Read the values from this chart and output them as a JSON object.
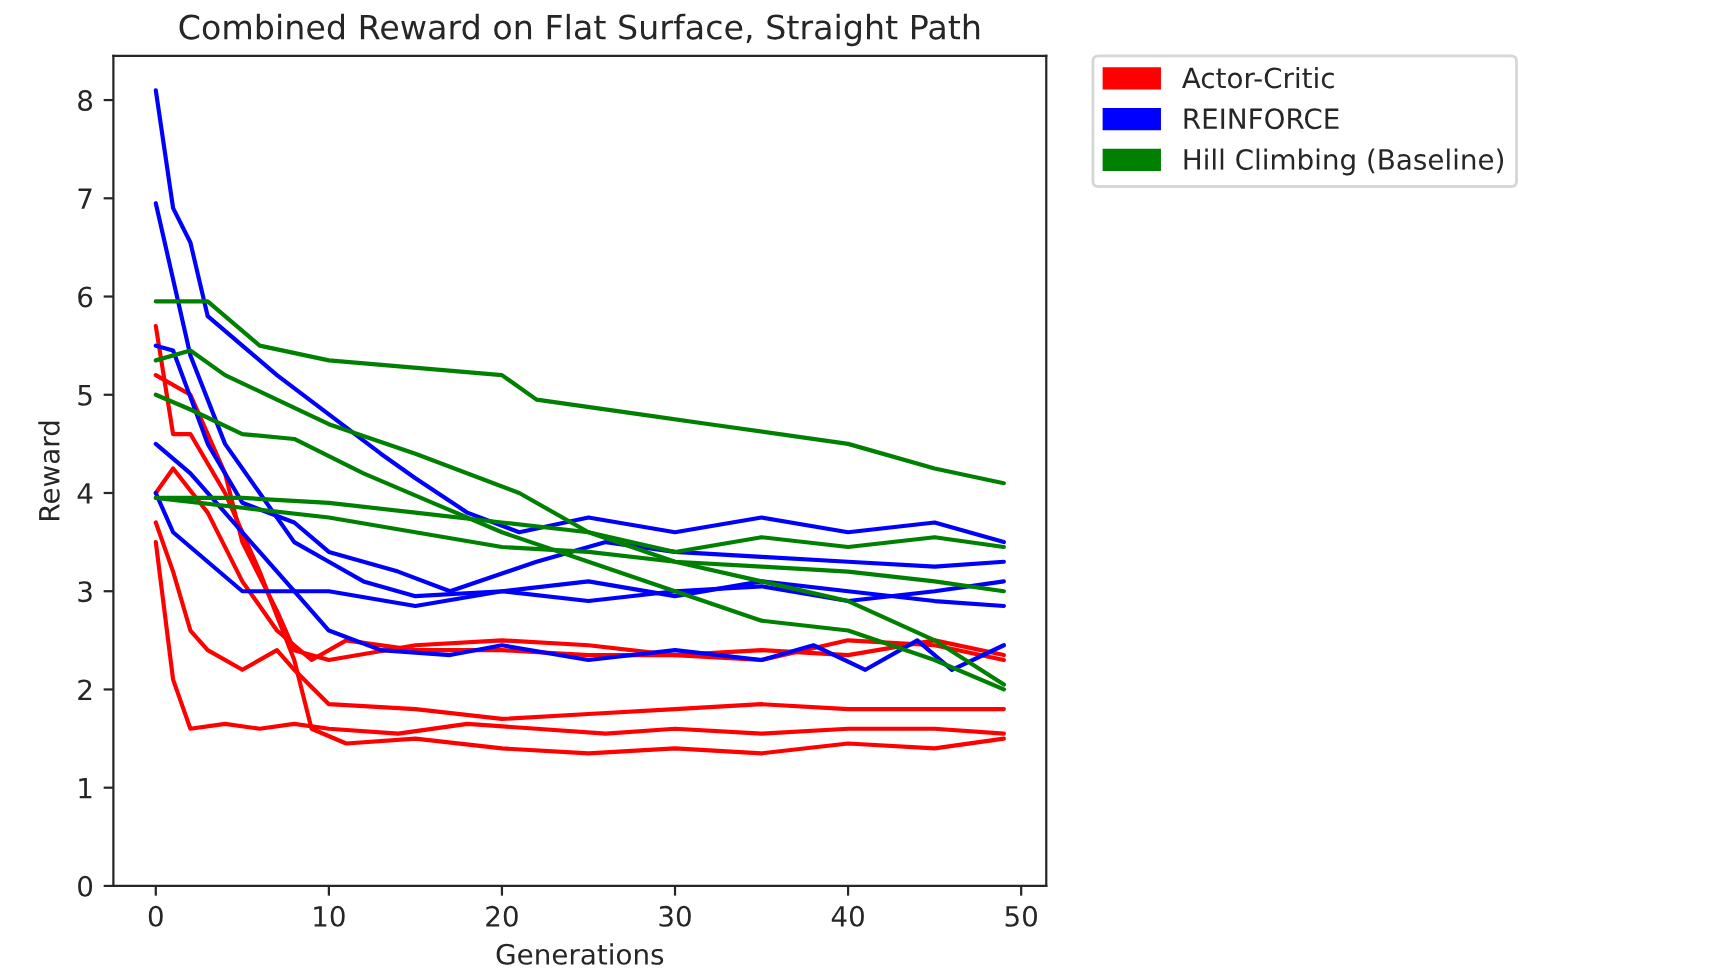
{
  "chart_data": {
    "type": "line",
    "title": "Combined Reward on Flat Surface, Straight Path",
    "xlabel": "Generations",
    "ylabel": "Reward",
    "xlim": [
      -2.45,
      51.45
    ],
    "ylim": [
      0,
      8.45
    ],
    "xticks": [
      0,
      10,
      20,
      30,
      40,
      50
    ],
    "yticks": [
      0,
      1,
      2,
      3,
      4,
      5,
      6,
      7,
      8
    ],
    "grid": false,
    "legend": "top right",
    "marker": "none",
    "line_style": "solid",
    "series": [
      {
        "name": "Actor-Critic",
        "color": "#ff0000",
        "x": [
          0,
          1,
          2,
          4,
          6,
          8,
          9,
          11,
          15,
          20,
          25,
          30,
          35,
          40,
          45,
          49
        ],
        "values": [
          5.7,
          4.6,
          4.6,
          4.0,
          3.2,
          2.3,
          1.6,
          1.45,
          1.5,
          1.4,
          1.35,
          1.4,
          1.35,
          1.45,
          1.4,
          1.5
        ]
      },
      {
        "color": "#ff0000",
        "x": [
          0,
          2,
          4,
          5,
          7,
          8,
          10,
          15,
          20,
          25,
          30,
          35,
          40,
          45,
          49
        ],
        "values": [
          5.2,
          5.0,
          4.2,
          3.5,
          2.8,
          2.4,
          2.3,
          2.45,
          2.5,
          2.45,
          2.35,
          2.4,
          2.35,
          2.5,
          2.35
        ]
      },
      {
        "color": "#ff0000",
        "x": [
          0,
          1,
          3,
          5,
          7,
          9,
          11,
          15,
          20,
          25,
          30,
          35,
          40,
          45,
          49
        ],
        "values": [
          4.0,
          4.25,
          3.8,
          3.1,
          2.6,
          2.3,
          2.5,
          2.4,
          2.4,
          2.35,
          2.35,
          2.3,
          2.5,
          2.45,
          2.3
        ]
      },
      {
        "color": "#ff0000",
        "x": [
          0,
          1,
          2,
          3,
          5,
          7,
          8,
          10,
          15,
          20,
          25,
          30,
          35,
          40,
          45,
          49
        ],
        "values": [
          3.7,
          3.2,
          2.6,
          2.4,
          2.2,
          2.4,
          2.2,
          1.85,
          1.8,
          1.7,
          1.75,
          1.8,
          1.85,
          1.8,
          1.8,
          1.8
        ]
      },
      {
        "color": "#ff0000",
        "x": [
          0,
          1,
          2,
          4,
          6,
          8,
          10,
          14,
          18,
          22,
          26,
          30,
          35,
          40,
          45,
          49
        ],
        "values": [
          3.5,
          2.1,
          1.6,
          1.65,
          1.6,
          1.65,
          1.6,
          1.55,
          1.65,
          1.6,
          1.55,
          1.6,
          1.55,
          1.6,
          1.6,
          1.55
        ]
      },
      {
        "name": "REINFORCE",
        "color": "#0000ff",
        "x": [
          0,
          1,
          2,
          3,
          5,
          7,
          10,
          13,
          15,
          18,
          21,
          25,
          30,
          35,
          40,
          45,
          49
        ],
        "values": [
          8.1,
          6.9,
          6.55,
          5.8,
          5.5,
          5.2,
          4.8,
          4.4,
          4.15,
          3.8,
          3.6,
          3.75,
          3.6,
          3.75,
          3.6,
          3.7,
          3.5
        ]
      },
      {
        "color": "#0000ff",
        "x": [
          0,
          2,
          4,
          6,
          8,
          10,
          12,
          15,
          20,
          25,
          30,
          35,
          40,
          45,
          49
        ],
        "values": [
          6.95,
          5.4,
          4.5,
          4.0,
          3.5,
          3.3,
          3.1,
          2.95,
          3.0,
          3.1,
          2.95,
          3.1,
          3.0,
          2.9,
          2.85
        ]
      },
      {
        "color": "#0000ff",
        "x": [
          0,
          1,
          3,
          5,
          8,
          10,
          14,
          17,
          22,
          26,
          30,
          35,
          40,
          45,
          49
        ],
        "values": [
          5.5,
          5.45,
          4.5,
          3.9,
          3.7,
          3.4,
          3.2,
          3.0,
          3.3,
          3.5,
          3.4,
          3.35,
          3.3,
          3.25,
          3.3
        ]
      },
      {
        "color": "#0000ff",
        "x": [
          0,
          2,
          4,
          6,
          8,
          10,
          13,
          17,
          20,
          25,
          30,
          35,
          38,
          41,
          44,
          46,
          49
        ],
        "values": [
          4.5,
          4.2,
          3.8,
          3.4,
          3.0,
          2.6,
          2.4,
          2.35,
          2.45,
          2.3,
          2.4,
          2.3,
          2.45,
          2.2,
          2.5,
          2.2,
          2.45
        ]
      },
      {
        "color": "#0000ff",
        "x": [
          0,
          1,
          3,
          5,
          8,
          10,
          15,
          20,
          25,
          30,
          35,
          40,
          45,
          49
        ],
        "values": [
          4.0,
          3.6,
          3.3,
          3.0,
          3.0,
          3.0,
          2.85,
          3.0,
          2.9,
          3.0,
          3.05,
          2.9,
          3.0,
          3.1
        ]
      },
      {
        "name": "Hill Climbing (Baseline)",
        "color": "#008000",
        "x": [
          0,
          3,
          6,
          10,
          20,
          22,
          28,
          32,
          40,
          45,
          49
        ],
        "values": [
          5.95,
          5.95,
          5.5,
          5.35,
          5.2,
          4.95,
          4.8,
          4.7,
          4.5,
          4.25,
          4.1
        ]
      },
      {
        "color": "#008000",
        "x": [
          0,
          2,
          4,
          7,
          10,
          15,
          21,
          25,
          30,
          35,
          40,
          45,
          49
        ],
        "values": [
          5.35,
          5.45,
          5.2,
          4.95,
          4.7,
          4.4,
          4.0,
          3.6,
          3.3,
          3.1,
          2.9,
          2.5,
          2.05
        ]
      },
      {
        "color": "#008000",
        "x": [
          0,
          2,
          5,
          8,
          12,
          16,
          20,
          25,
          30,
          35,
          40,
          45,
          49
        ],
        "values": [
          5.0,
          4.85,
          4.6,
          4.55,
          4.2,
          3.9,
          3.6,
          3.3,
          3.0,
          2.7,
          2.6,
          2.3,
          2.0
        ]
      },
      {
        "color": "#008000",
        "x": [
          0,
          5,
          10,
          15,
          20,
          25,
          30,
          35,
          40,
          45,
          49
        ],
        "values": [
          3.95,
          3.95,
          3.9,
          3.8,
          3.7,
          3.6,
          3.4,
          3.55,
          3.45,
          3.55,
          3.45
        ]
      },
      {
        "color": "#008000",
        "x": [
          0,
          5,
          10,
          15,
          20,
          25,
          30,
          35,
          40,
          45,
          49
        ],
        "values": [
          3.95,
          3.85,
          3.75,
          3.6,
          3.45,
          3.4,
          3.3,
          3.25,
          3.2,
          3.1,
          3.0
        ]
      }
    ]
  }
}
